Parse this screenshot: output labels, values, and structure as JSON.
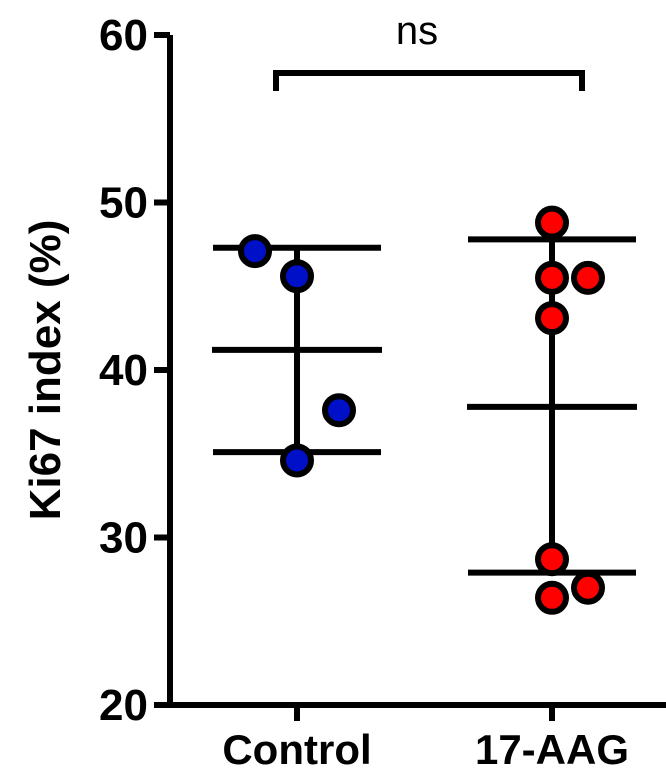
{
  "chart_data": {
    "type": "scatter",
    "ylabel": "Ki67 index (%)",
    "xlabel": "",
    "ylim": [
      20,
      60
    ],
    "yticks": [
      "20",
      "30",
      "40",
      "50",
      "60"
    ],
    "categories": [
      "Control",
      "17-AAG"
    ],
    "significance": "ns",
    "series": [
      {
        "category": "Control",
        "color": "#0010c8",
        "points": [
          {
            "y": 47.1,
            "jitter": -0.35
          },
          {
            "y": 45.6,
            "jitter": 0.0
          },
          {
            "y": 37.6,
            "jitter": 0.35
          },
          {
            "y": 34.6,
            "jitter": 0.0
          }
        ],
        "mean": 41.2,
        "sd_upper": 47.3,
        "sd_lower": 35.1
      },
      {
        "category": "17-AAG",
        "color": "#ff0000",
        "points": [
          {
            "y": 48.8,
            "jitter": 0.0
          },
          {
            "y": 45.5,
            "jitter": 0.0
          },
          {
            "y": 45.5,
            "jitter": 0.3
          },
          {
            "y": 43.1,
            "jitter": 0.0
          },
          {
            "y": 28.7,
            "jitter": 0.0
          },
          {
            "y": 27.0,
            "jitter": 0.3
          },
          {
            "y": 26.4,
            "jitter": 0.0
          }
        ],
        "mean": 37.8,
        "sd_upper": 47.8,
        "sd_lower": 27.9
      }
    ]
  }
}
